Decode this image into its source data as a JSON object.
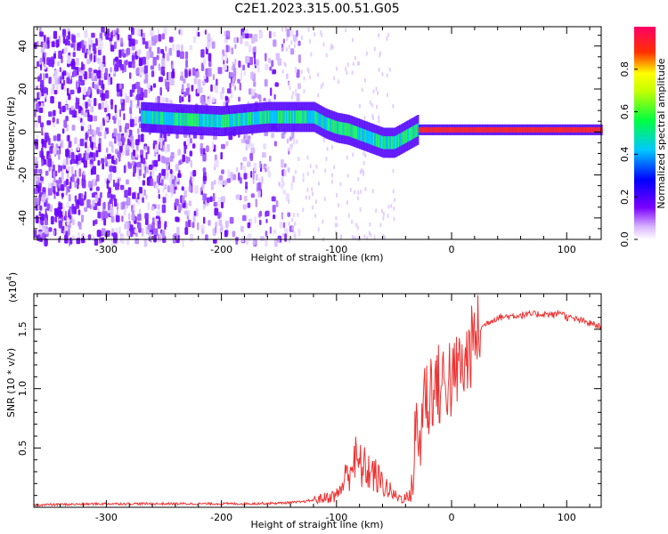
{
  "figure": {
    "title": "C2E1.2023.315.00.51.G05"
  },
  "chart_data": [
    {
      "type": "heatmap",
      "title": "C2E1.2023.315.00.51.G05",
      "xlabel": "Height of straight line (km)",
      "ylabel": "Frequency (Hz)",
      "xlim": [
        -363,
        130
      ],
      "ylim": [
        -50,
        49
      ],
      "x_ticks": [
        -300,
        -200,
        -100,
        0,
        100
      ],
      "x_tick_labels": [
        "-300",
        "-200",
        "-100",
        "0",
        "100"
      ],
      "y_ticks": [
        -40,
        -20,
        0,
        20,
        40
      ],
      "y_tick_labels": [
        "-40",
        "-20",
        "0",
        "20",
        "40"
      ],
      "colorbar": {
        "label": "Normalized spectral amplitude",
        "range": [
          0,
          1
        ],
        "ticks": [
          0.0,
          0.2,
          0.4,
          0.6,
          0.8
        ],
        "tick_labels": [
          "0.0",
          "0.2",
          "0.4",
          "0.6",
          "0.8"
        ],
        "colormap": [
          "#ffffff",
          "#7a00ff",
          "#0000ff",
          "#00c8ff",
          "#00ff40",
          "#ffff00",
          "#ff0000",
          "#ff0060"
        ]
      },
      "ridge": {
        "description_values": "peak frequency (Hz) vs height (km)",
        "x": [
          -270,
          -240,
          -200,
          -180,
          -160,
          -140,
          -120,
          -110,
          -100,
          -90,
          -80,
          -70,
          -60,
          -50,
          -40,
          -30,
          -20,
          -10,
          0,
          20,
          50,
          80,
          100,
          130
        ],
        "y": [
          7,
          6,
          5,
          6,
          7,
          7,
          7,
          4,
          2,
          1,
          -1,
          -3,
          -5,
          -5,
          -2,
          1,
          1,
          1,
          1,
          1,
          1,
          1,
          1,
          1
        ]
      },
      "grid": false
    },
    {
      "type": "line",
      "xlabel": "Height of straight line (km)",
      "ylabel": "SNR (10 * v/v)",
      "y_scale_label": "(x10",
      "y_scale_exponent": "4",
      "xlim": [
        -363,
        130
      ],
      "ylim": [
        0,
        1.8
      ],
      "x_ticks": [
        -300,
        -200,
        -100,
        0,
        100
      ],
      "x_tick_labels": [
        "-300",
        "-200",
        "-100",
        "0",
        "100"
      ],
      "y_ticks": [
        0.5,
        1.0,
        1.5
      ],
      "y_tick_labels": [
        "0.5",
        "1.0",
        "1.5"
      ],
      "series": [
        {
          "color": "#ee3333",
          "x": [
            -363,
            -330,
            -300,
            -260,
            -220,
            -180,
            -150,
            -130,
            -120,
            -110,
            -100,
            -95,
            -90,
            -85,
            -80,
            -75,
            -70,
            -65,
            -60,
            -55,
            -50,
            -45,
            -40,
            -35,
            -32,
            -30,
            -28,
            -25,
            -22,
            -20,
            -18,
            -15,
            -12,
            -10,
            -8,
            -5,
            -2,
            0,
            3,
            6,
            10,
            15,
            20,
            25,
            30,
            40,
            60,
            80,
            90,
            95,
            100,
            110,
            120,
            130
          ],
          "y": [
            0.02,
            0.025,
            0.03,
            0.03,
            0.03,
            0.03,
            0.035,
            0.045,
            0.06,
            0.08,
            0.1,
            0.18,
            0.3,
            0.4,
            0.35,
            0.32,
            0.3,
            0.25,
            0.2,
            0.15,
            0.1,
            0.08,
            0.08,
            0.1,
            0.5,
            0.75,
            0.45,
            0.9,
            1.0,
            0.8,
            1.05,
            0.95,
            1.1,
            0.9,
            1.1,
            1.0,
            1.15,
            1.0,
            1.1,
            1.2,
            1.15,
            1.3,
            1.42,
            1.5,
            1.55,
            1.6,
            1.62,
            1.63,
            1.62,
            1.65,
            1.6,
            1.58,
            1.55,
            1.52
          ]
        }
      ],
      "grid": false
    }
  ]
}
